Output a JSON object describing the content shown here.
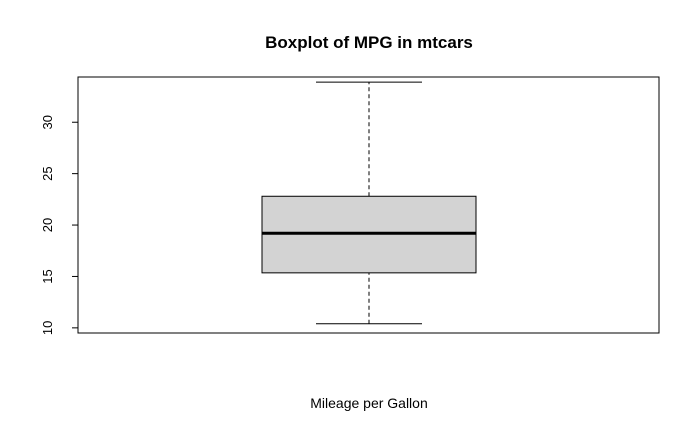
{
  "chart_data": {
    "type": "boxplot",
    "title": "Boxplot of MPG in mtcars",
    "xlabel": "Mileage per Gallon",
    "ylabel": "",
    "ylim": [
      9.5,
      34.4
    ],
    "yticks": [
      10,
      15,
      20,
      25,
      30
    ],
    "ytick_labels": [
      "10",
      "15",
      "20",
      "25",
      "30"
    ],
    "box": {
      "min": 10.4,
      "q1": 15.35,
      "median": 19.2,
      "q3": 22.8,
      "max": 33.9
    },
    "colors": {
      "box_fill": "#d3d3d3",
      "stroke": "#000000"
    }
  }
}
